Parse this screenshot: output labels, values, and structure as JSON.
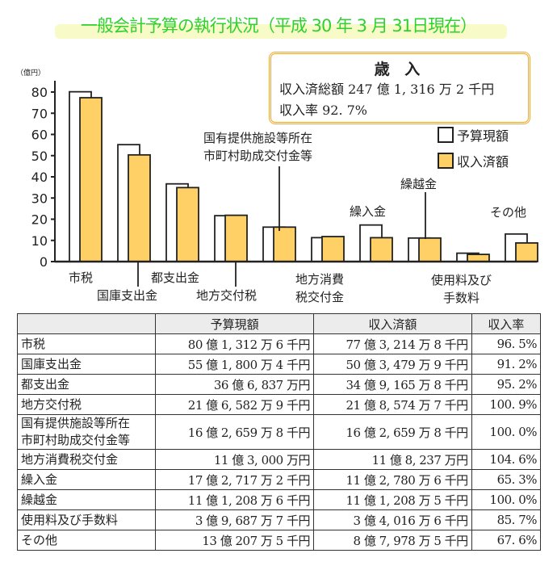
{
  "title": "一般会計予算の執行状況（平成 30 年 3 月 31日現在）",
  "summary": {
    "heading": "歳 入",
    "total_line": "収入済総額 247 億 1, 316 万 2 千円",
    "rate_line": "収入率 92. 7%"
  },
  "colors": {
    "title": "#2fd12f",
    "received": "#ffd066",
    "budget": "#ffffff",
    "box_border": "#f5a623"
  },
  "chart_data": {
    "type": "bar",
    "ylabel": "（億円）",
    "ylim": [
      0,
      80
    ],
    "yticks": [
      "0",
      "10",
      "20",
      "30",
      "40",
      "50",
      "60",
      "70",
      "80"
    ],
    "categories": [
      "市税",
      "国庫支出金",
      "都支出金",
      "地方交付税",
      "国有提供施設等所在市町村助成交付金等",
      "地方消費税交付金",
      "繰入金",
      "繰越金",
      "使用料及び手数料",
      "その他"
    ],
    "category_labels": [
      [
        "市税"
      ],
      [
        "国庫支出金"
      ],
      [
        "都支出金"
      ],
      [
        "地方交付税"
      ],
      [
        "国有提供施設等所在",
        "市町村助成交付金等"
      ],
      [
        "地方消費",
        "税交付金"
      ],
      [
        "繰入金"
      ],
      [
        "繰越金"
      ],
      [
        "使用料及び",
        "手数料"
      ],
      [
        "その他"
      ]
    ],
    "series": [
      {
        "name": "予算現額",
        "values": [
          80.13,
          55.18,
          36.68,
          21.66,
          16.27,
          11.3,
          17.27,
          11.12,
          3.97,
          13.02
        ]
      },
      {
        "name": "収入済額",
        "values": [
          77.32,
          50.35,
          34.92,
          21.86,
          16.27,
          11.82,
          11.28,
          11.12,
          3.4,
          8.8
        ]
      }
    ],
    "legend": "top-right",
    "grid": false
  },
  "table": {
    "headers": [
      "",
      "予算現額",
      "収入済額",
      "収入率"
    ],
    "rows": [
      [
        "市税",
        "80 億 1, 312 万 6 千円",
        "77 億 3, 214 万 8 千円",
        "96. 5%"
      ],
      [
        "国庫支出金",
        "55 億 1, 800 万 4 千円",
        "50 億 3, 479 万 9 千円",
        "91. 2%"
      ],
      [
        "都支出金",
        "36 億 6, 837 万円",
        "34 億 9, 165 万 8 千円",
        "95. 2%"
      ],
      [
        "地方交付税",
        "21 億 6, 582 万 9 千円",
        "21 億 8, 574 万 7 千円",
        "100. 9%"
      ],
      [
        "国有提供施設等所在\n市町村助成交付金等",
        "16 億 2, 659 万 8 千円",
        "16 億 2, 659 万 8 千円",
        "100. 0%"
      ],
      [
        "地方消費税交付金",
        "11 億 3, 000 万円",
        "11 億 8, 237 万円",
        "104. 6%"
      ],
      [
        "繰入金",
        "17 億 2, 717 万 2 千円",
        "11 億 2, 780 万 6 千円",
        "65. 3%"
      ],
      [
        "繰越金",
        "11 億 1, 208 万 6 千円",
        "11 億 1, 208 万 5 千円",
        "100. 0%"
      ],
      [
        "使用料及び手数料",
        "3 億 9, 687 万 7 千円",
        "3 億 4, 016 万 6 千円",
        "85. 7%"
      ],
      [
        "その他",
        "13 億 207 万 5 千円",
        "8 億 7, 978 万 5 千円",
        "67. 6%"
      ]
    ]
  }
}
